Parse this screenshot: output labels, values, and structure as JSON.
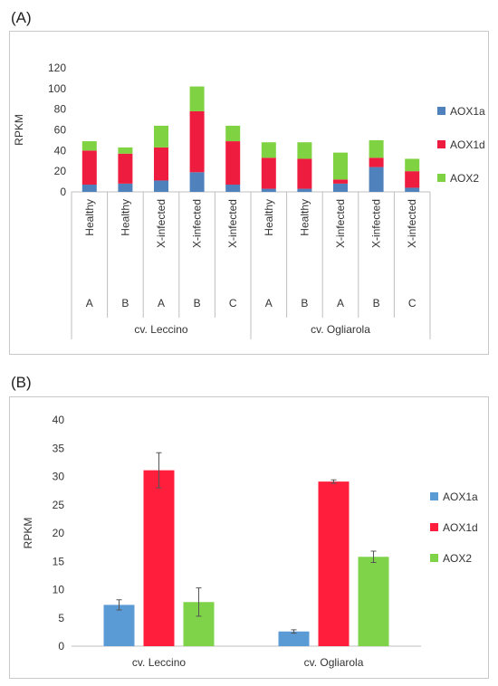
{
  "panel_labels": {
    "a": "(A)",
    "b": "(B)"
  },
  "chart_data": [
    {
      "type": "bar",
      "stacked": true,
      "ylabel": "RPKM",
      "ylim": [
        0,
        120
      ],
      "yticks": [
        0,
        20,
        40,
        60,
        80,
        100,
        120
      ],
      "grid": false,
      "legend_position": "right",
      "groups": [
        {
          "label": "cv. Leccino",
          "categories": [
            {
              "condition": "Healthy",
              "replicate": "A"
            },
            {
              "condition": "Healthy",
              "replicate": "B"
            },
            {
              "condition": "X-infected",
              "replicate": "A"
            },
            {
              "condition": "X-infected",
              "replicate": "B"
            },
            {
              "condition": "X-infected",
              "replicate": "C"
            }
          ]
        },
        {
          "label": "cv. Ogliarola",
          "categories": [
            {
              "condition": "Healthy",
              "replicate": "A"
            },
            {
              "condition": "Healthy",
              "replicate": "B"
            },
            {
              "condition": "X-infected",
              "replicate": "A"
            },
            {
              "condition": "X-infected",
              "replicate": "B"
            },
            {
              "condition": "X-infected",
              "replicate": "C"
            }
          ]
        }
      ],
      "series": [
        {
          "name": "AOX1a",
          "color": "#4f81bd",
          "values": [
            7,
            8,
            11,
            19,
            7,
            3,
            3,
            8,
            24,
            4
          ]
        },
        {
          "name": "AOX1d",
          "color": "#ee1c3e",
          "values": [
            33,
            29,
            32,
            59,
            42,
            30,
            29,
            4,
            9,
            16
          ]
        },
        {
          "name": "AOX2",
          "color": "#7fd242",
          "values": [
            9,
            6,
            21,
            24,
            15,
            15,
            16,
            26,
            17,
            12
          ]
        }
      ]
    },
    {
      "type": "bar",
      "ylabel": "RPKM",
      "ylim": [
        0,
        40
      ],
      "yticks": [
        0,
        5,
        10,
        15,
        20,
        25,
        30,
        35,
        40
      ],
      "grid": false,
      "legend_position": "right",
      "categories": [
        "cv. Leccino",
        "cv. Ogliarola"
      ],
      "series": [
        {
          "name": "AOX1a",
          "color": "#5b9bd5",
          "values": [
            7.3,
            2.6
          ],
          "errors": [
            0.9,
            0.3
          ]
        },
        {
          "name": "AOX1d",
          "color": "#ff1f3d",
          "values": [
            31.1,
            29.1
          ],
          "errors": [
            3.1,
            0.3
          ]
        },
        {
          "name": "AOX2",
          "color": "#7ed348",
          "values": [
            7.8,
            15.8
          ],
          "errors": [
            2.5,
            1.0
          ]
        }
      ]
    }
  ]
}
